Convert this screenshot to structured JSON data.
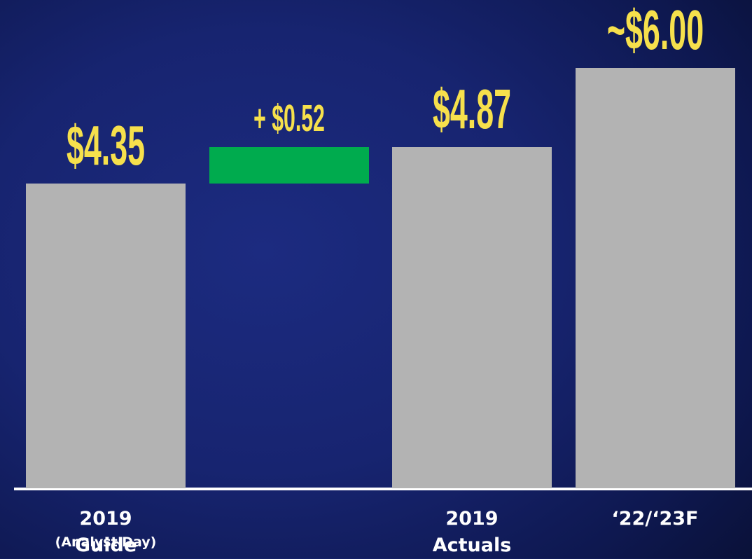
{
  "chart_data": {
    "type": "waterfall",
    "categories": [
      "2019 Guide",
      null,
      "2019 Actuals",
      "‘22/‘23F"
    ],
    "category_sublabels": [
      "(Analyst Day)",
      null,
      null,
      null
    ],
    "values": [
      4.35,
      0.52,
      4.87,
      6.0
    ],
    "value_labels": [
      "$4.35",
      "+ $0.52",
      "$4.87",
      "~$6.00"
    ],
    "measure": [
      "absolute",
      "relative",
      "absolute",
      "absolute"
    ],
    "colors": [
      "#b3b3b3",
      "#00ab4e",
      "#b3b3b3",
      "#b3b3b3"
    ],
    "label_color": "#f6e04c"
  }
}
